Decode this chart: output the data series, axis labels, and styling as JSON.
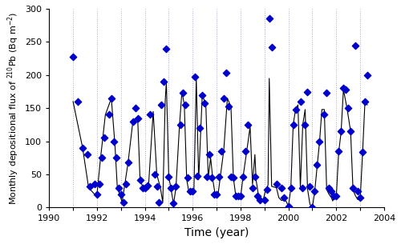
{
  "title": "",
  "xlabel": "Time (year)",
  "ylabel": "Monthly depositional flux of $^{210}$Pb (Bq m$^{-2}$)",
  "xlim": [
    1990,
    2004
  ],
  "ylim": [
    0,
    300
  ],
  "yticks": [
    0,
    50,
    100,
    150,
    200,
    250,
    300
  ],
  "xticks": [
    1990,
    1991,
    1992,
    1993,
    1994,
    1995,
    1996,
    1997,
    1998,
    1999,
    2000,
    2001,
    2002,
    2003,
    2004
  ],
  "scatter_color": "#0000CC",
  "line_color": "#000000",
  "background_color": "#ffffff",
  "grid_color": "#aaaacc",
  "scatter_x": [
    1991.0,
    1991.2,
    1991.4,
    1991.6,
    1991.7,
    1991.9,
    1992.0,
    1992.1,
    1992.2,
    1992.3,
    1992.5,
    1992.6,
    1992.7,
    1992.8,
    1992.9,
    1993.0,
    1993.1,
    1993.2,
    1993.3,
    1993.5,
    1993.6,
    1993.7,
    1993.8,
    1993.9,
    1994.0,
    1994.1,
    1994.2,
    1994.4,
    1994.5,
    1994.6,
    1994.7,
    1994.8,
    1994.9,
    1995.0,
    1995.1,
    1995.2,
    1995.3,
    1995.5,
    1995.6,
    1995.7,
    1995.8,
    1995.9,
    1996.0,
    1996.1,
    1996.2,
    1996.3,
    1996.4,
    1996.5,
    1996.6,
    1996.7,
    1996.8,
    1996.9,
    1997.0,
    1997.1,
    1997.2,
    1997.3,
    1997.4,
    1997.5,
    1997.6,
    1997.7,
    1997.8,
    1997.9,
    1998.0,
    1998.1,
    1998.2,
    1998.3,
    1998.5,
    1998.6,
    1998.7,
    1998.8,
    1999.0,
    1999.1,
    1999.2,
    1999.3,
    1999.5,
    1999.7,
    1999.8,
    2000.0,
    2000.1,
    2000.2,
    2000.3,
    2000.5,
    2000.6,
    2000.7,
    2000.8,
    2000.9,
    2001.0,
    2001.1,
    2001.2,
    2001.3,
    2001.5,
    2001.6,
    2001.7,
    2001.8,
    2001.9,
    2002.0,
    2002.1,
    2002.2,
    2002.3,
    2002.4,
    2002.5,
    2002.6,
    2002.7,
    2002.8,
    2002.9,
    2003.0,
    2003.1,
    2003.2,
    2003.3
  ],
  "scatter_y": [
    228,
    160,
    90,
    80,
    32,
    35,
    20,
    35,
    75,
    105,
    140,
    165,
    100,
    75,
    30,
    20,
    8,
    35,
    68,
    130,
    150,
    135,
    42,
    30,
    30,
    33,
    140,
    50,
    32,
    8,
    155,
    190,
    240,
    47,
    30,
    7,
    32,
    125,
    173,
    155,
    45,
    25,
    25,
    197,
    48,
    120,
    170,
    157,
    47,
    80,
    45,
    20,
    20,
    46,
    85,
    165,
    203,
    153,
    47,
    45,
    18,
    17,
    17,
    46,
    85,
    125,
    30,
    47,
    18,
    12,
    12,
    27,
    285,
    242,
    35,
    30,
    15,
    2,
    30,
    125,
    148,
    160,
    30,
    125,
    174,
    32,
    0,
    25,
    65,
    100,
    140,
    173,
    30,
    25,
    18,
    17,
    85,
    115,
    180,
    178,
    150,
    115,
    30,
    245,
    25,
    15,
    84,
    160,
    200
  ],
  "line_x": [
    1991.0,
    1991.4,
    1991.65,
    1991.9,
    1992.0,
    1992.15,
    1992.35,
    1992.6,
    1992.75,
    1992.85,
    1992.95,
    1993.05,
    1993.15,
    1993.3,
    1993.5,
    1993.7,
    1993.8,
    1993.95,
    1994.05,
    1994.15,
    1994.35,
    1994.5,
    1994.65,
    1994.75,
    1994.85,
    1994.9,
    1995.0,
    1995.1,
    1995.2,
    1995.3,
    1995.45,
    1995.55,
    1995.65,
    1995.75,
    1995.85,
    1995.95,
    1996.05,
    1996.15,
    1996.25,
    1996.4,
    1996.55,
    1996.65,
    1996.75,
    1996.85,
    1996.95,
    1997.05,
    1997.15,
    1997.3,
    1997.45,
    1997.6,
    1997.7,
    1997.8,
    1997.9,
    1998.0,
    1998.1,
    1998.25,
    1998.4,
    1998.5,
    1998.6,
    1998.65,
    1998.75,
    1998.85,
    1998.95,
    1999.05,
    1999.15,
    1999.2,
    1999.3,
    1999.5,
    1999.6,
    1999.7,
    1999.8,
    1999.9,
    2000.0,
    2000.1,
    2000.2,
    2000.3,
    2000.4,
    2000.5,
    2000.6,
    2000.7,
    2000.8,
    2000.9,
    2001.0,
    2001.1,
    2001.2,
    2001.3,
    2001.4,
    2001.5,
    2001.6,
    2001.7,
    2001.8,
    2001.85,
    2001.9,
    2002.0,
    2002.1,
    2002.2,
    2002.3,
    2002.45,
    2002.6,
    2002.7,
    2002.8,
    2002.9,
    2003.0,
    2003.1,
    2003.2,
    2003.3
  ],
  "line_y": [
    160,
    90,
    30,
    20,
    20,
    75,
    140,
    165,
    95,
    30,
    20,
    8,
    32,
    68,
    130,
    135,
    42,
    28,
    30,
    30,
    145,
    50,
    30,
    8,
    160,
    190,
    47,
    27,
    5,
    30,
    125,
    175,
    155,
    42,
    22,
    20,
    22,
    195,
    42,
    170,
    155,
    45,
    75,
    40,
    17,
    17,
    45,
    87,
    165,
    152,
    45,
    18,
    15,
    15,
    45,
    83,
    122,
    35,
    80,
    42,
    18,
    12,
    12,
    27,
    34,
    195,
    32,
    30,
    15,
    11,
    11,
    10,
    2,
    28,
    125,
    148,
    155,
    30,
    125,
    148,
    28,
    5,
    0,
    24,
    62,
    98,
    148,
    148,
    27,
    20,
    15,
    10,
    15,
    15,
    83,
    113,
    178,
    150,
    115,
    27,
    18,
    12,
    12,
    82,
    160,
    155
  ]
}
